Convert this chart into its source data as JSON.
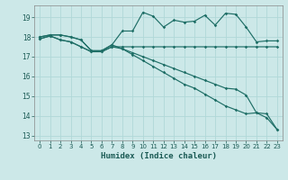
{
  "xlabel": "Humidex (Indice chaleur)",
  "bg_color": "#cce8e8",
  "grid_color": "#b0d8d8",
  "line_color": "#1e6e66",
  "xlim": [
    -0.5,
    23.5
  ],
  "ylim": [
    12.75,
    19.6
  ],
  "xticks": [
    0,
    1,
    2,
    3,
    4,
    5,
    6,
    7,
    8,
    9,
    10,
    11,
    12,
    13,
    14,
    15,
    16,
    17,
    18,
    19,
    20,
    21,
    22,
    23
  ],
  "yticks": [
    13,
    14,
    15,
    16,
    17,
    18,
    19
  ],
  "line_wavy_x": [
    0,
    1,
    2,
    3,
    4,
    5,
    6,
    7,
    8,
    9,
    10,
    11,
    12,
    13,
    14,
    15,
    16,
    17,
    18,
    19,
    20,
    21,
    22,
    23
  ],
  "line_wavy_y": [
    18.0,
    18.1,
    18.1,
    18.0,
    17.85,
    17.3,
    17.3,
    17.6,
    18.3,
    18.3,
    19.25,
    19.05,
    18.5,
    18.85,
    18.75,
    18.8,
    19.1,
    18.6,
    19.2,
    19.15,
    18.5,
    17.75,
    17.8,
    17.8
  ],
  "line_flat_x": [
    0,
    1,
    2,
    3,
    4,
    5,
    6,
    7,
    8,
    9,
    10,
    11,
    12,
    13,
    14,
    15,
    16,
    17,
    18,
    19,
    20,
    21,
    22,
    23
  ],
  "line_flat_y": [
    17.9,
    18.05,
    17.85,
    17.75,
    17.5,
    17.25,
    17.25,
    17.5,
    17.5,
    17.5,
    17.5,
    17.5,
    17.5,
    17.5,
    17.5,
    17.5,
    17.5,
    17.5,
    17.5,
    17.5,
    17.5,
    17.5,
    17.5,
    17.5
  ],
  "line_diag1_x": [
    0,
    1,
    2,
    3,
    4,
    5,
    6,
    7,
    8,
    9,
    10,
    11,
    12,
    13,
    14,
    15,
    16,
    17,
    18,
    19,
    20,
    21,
    22,
    23
  ],
  "line_diag1_y": [
    17.9,
    18.05,
    17.85,
    17.75,
    17.5,
    17.25,
    17.25,
    17.5,
    17.4,
    17.2,
    17.0,
    16.8,
    16.6,
    16.4,
    16.2,
    16.0,
    15.8,
    15.6,
    15.4,
    15.35,
    15.05,
    14.15,
    13.9,
    13.3
  ],
  "line_diag2_x": [
    0,
    1,
    2,
    3,
    4,
    5,
    6,
    7,
    8,
    9,
    10,
    11,
    12,
    13,
    14,
    15,
    16,
    17,
    18,
    19,
    20,
    21,
    22,
    23
  ],
  "line_diag2_y": [
    18.0,
    18.1,
    18.1,
    18.0,
    17.85,
    17.3,
    17.3,
    17.6,
    17.4,
    17.1,
    16.8,
    16.5,
    16.2,
    15.9,
    15.6,
    15.4,
    15.1,
    14.8,
    14.5,
    14.3,
    14.1,
    14.15,
    14.1,
    13.3
  ],
  "markersize": 1.8,
  "linewidth": 0.85
}
